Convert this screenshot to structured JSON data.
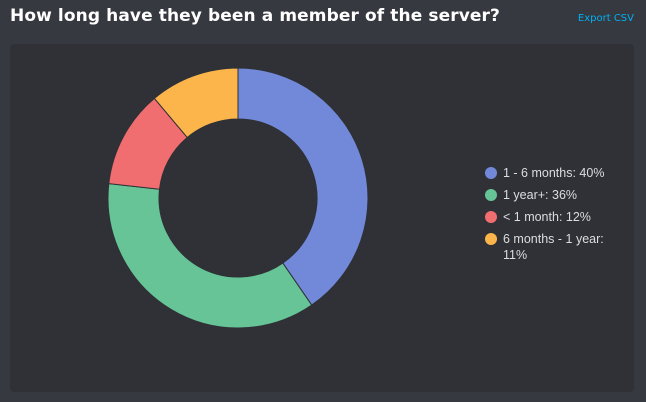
{
  "header": {
    "title": "How long have they been a member of the server?",
    "export_label": "Export CSV"
  },
  "chart_data": {
    "type": "pie",
    "donut": true,
    "categories": [
      "1 - 6 months",
      "1 year+",
      "< 1 month",
      "6 months - 1 year"
    ],
    "values": [
      40,
      36,
      12,
      11
    ],
    "unit": "%",
    "colors": [
      "#7289da",
      "#66c497",
      "#f06d70",
      "#fcb54a"
    ],
    "legend": {
      "placement": "right",
      "entries": [
        "1 - 6 months: 40%",
        "1 year+: 36%",
        "< 1 month: 12%",
        "6 months - 1 year: 11%"
      ]
    }
  }
}
